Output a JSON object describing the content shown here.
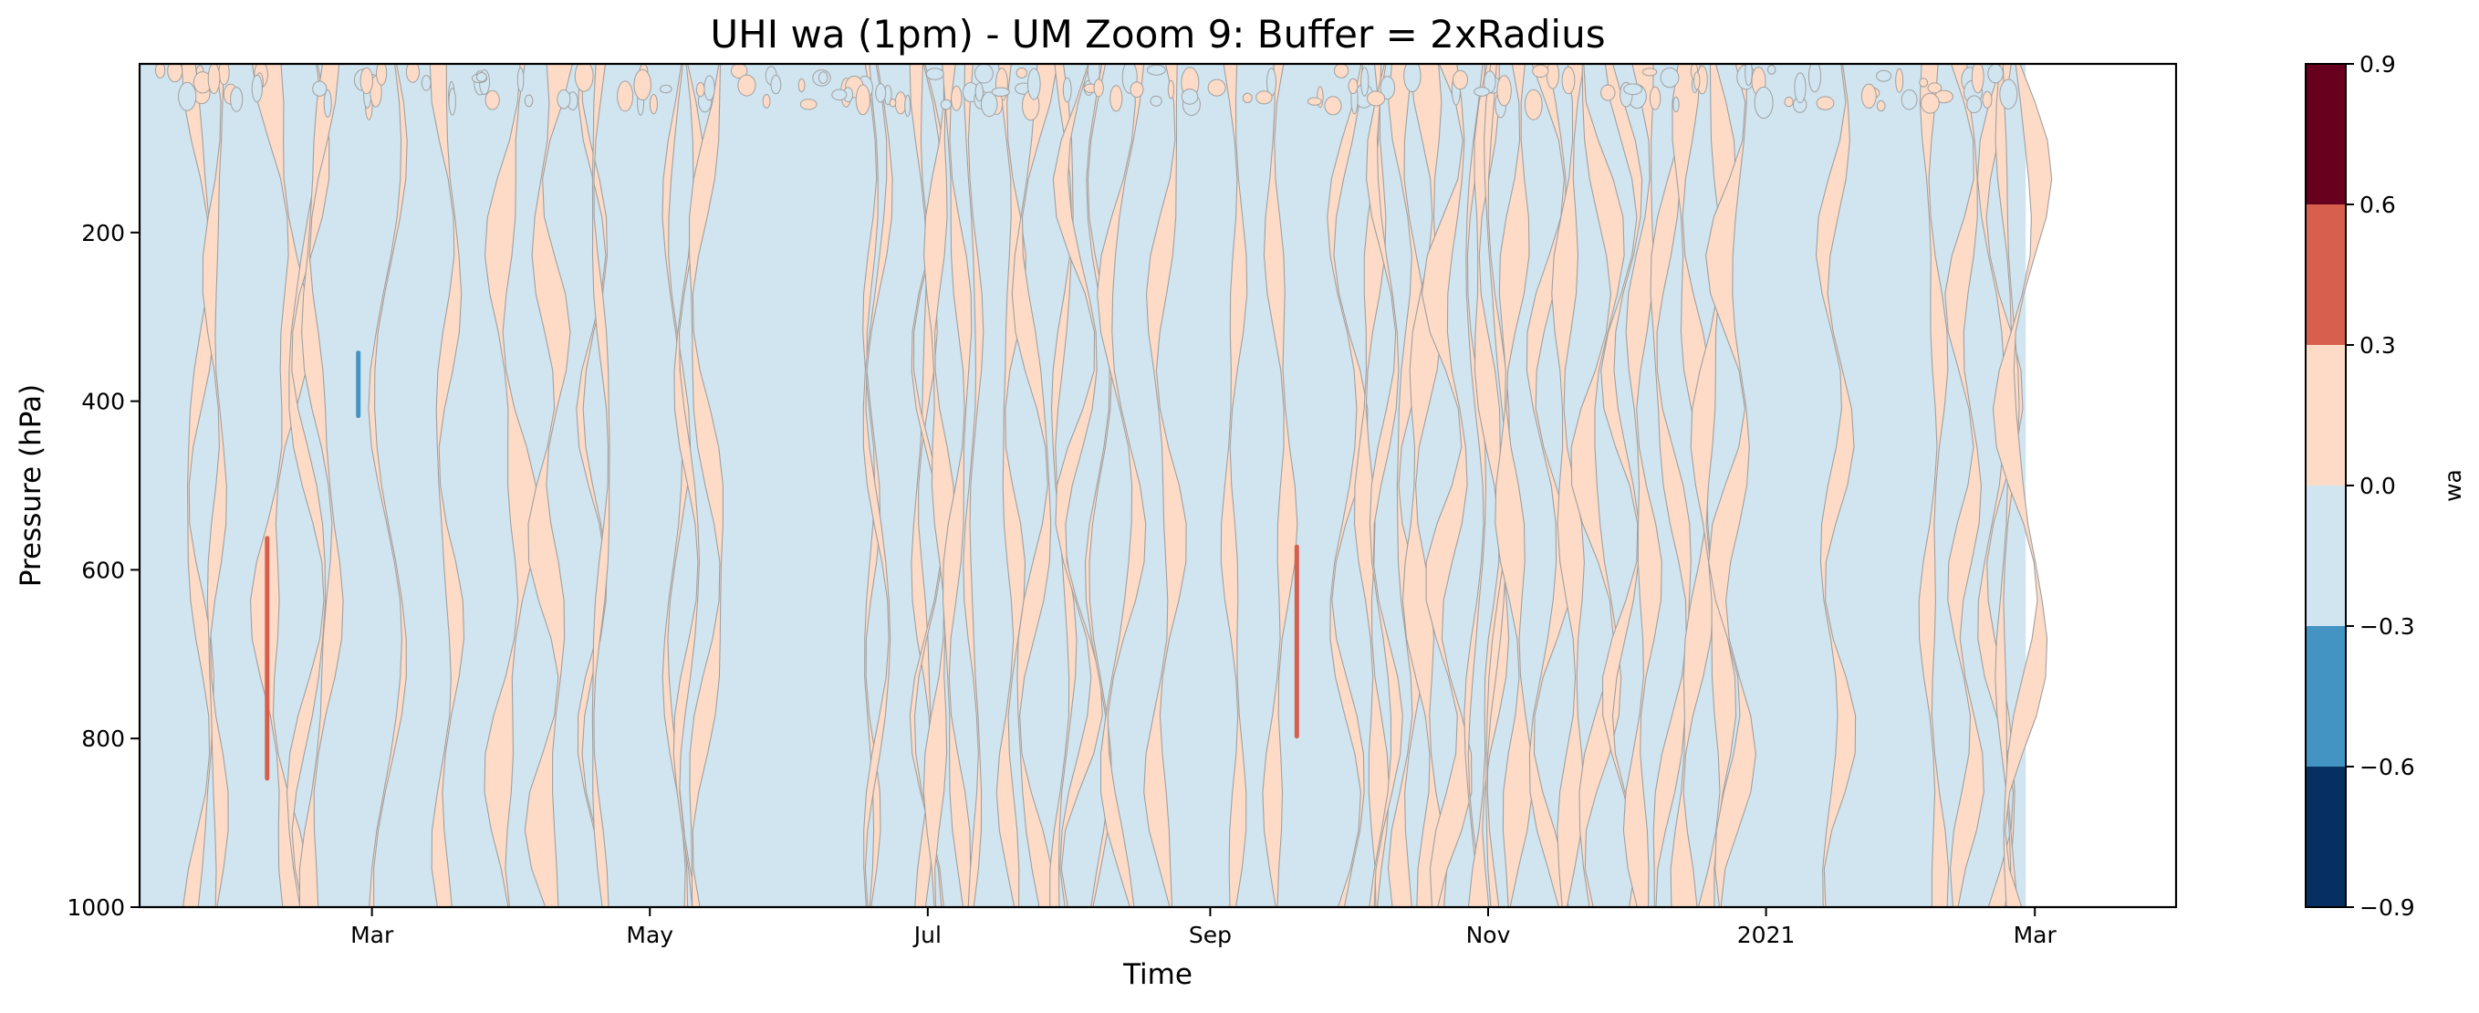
{
  "chart_data": {
    "type": "heatmap",
    "subtype": "filled-contour",
    "title": "UHI wa (1pm) - UM Zoom 9: Buffer = 2xRadius",
    "xlabel": "Time",
    "ylabel": "Pressure (hPa)",
    "x_range": [
      "2020-01-10",
      "2021-04-01"
    ],
    "data_x_range": [
      "2020-01-10",
      "2021-02-27"
    ],
    "y_range": [
      1000,
      0
    ],
    "y_axis_inverted": true,
    "x_ticks": [
      {
        "label": "Mar",
        "date": "2020-03-01"
      },
      {
        "label": "May",
        "date": "2020-05-01"
      },
      {
        "label": "Jul",
        "date": "2020-07-01"
      },
      {
        "label": "Sep",
        "date": "2020-09-01"
      },
      {
        "label": "Nov",
        "date": "2020-11-01"
      },
      {
        "label": "2021",
        "date": "2021-01-01"
      },
      {
        "label": "Mar",
        "date": "2021-03-01"
      }
    ],
    "y_ticks": [
      {
        "label": "200",
        "value": 200
      },
      {
        "label": "400",
        "value": 400
      },
      {
        "label": "600",
        "value": 600
      },
      {
        "label": "800",
        "value": 800
      },
      {
        "label": "1000",
        "value": 1000
      }
    ],
    "colorbar": {
      "label": "wa",
      "levels": [
        -0.9,
        -0.6,
        -0.3,
        0.0,
        0.3,
        0.6,
        0.9
      ],
      "tick_labels": [
        "−0.9",
        "−0.6",
        "−0.3",
        "0.0",
        "0.3",
        "0.6",
        "0.9"
      ],
      "colors": [
        "#053061",
        "#4393c3",
        "#d1e5f0",
        "#fddbc7",
        "#d6604d",
        "#67001f"
      ]
    },
    "contour_line_color": "#a0a0a0",
    "dominant_levels": [
      "-0.3 to 0.0",
      "0.0 to 0.3"
    ],
    "highlights": [
      {
        "date": "2020-02-07",
        "pressure_range": [
          560,
          850
        ],
        "value_level": "0.3 to 0.6"
      },
      {
        "date": "2020-02-27",
        "pressure_range": [
          340,
          420
        ],
        "value_level": "-0.6 to -0.3"
      },
      {
        "date": "2020-09-20",
        "pressure_range": [
          570,
          800
        ],
        "value_level": "0.3 to 0.6"
      }
    ],
    "grid": false
  }
}
